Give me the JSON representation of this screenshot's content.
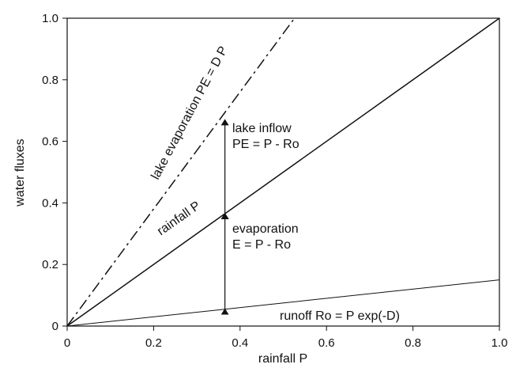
{
  "chart_data": {
    "type": "line",
    "title": "",
    "xlabel": "rainfall P",
    "ylabel": "water fluxes",
    "xlim": [
      0,
      1
    ],
    "ylim": [
      0,
      1
    ],
    "xticks": [
      "0",
      "0.2",
      "0.4",
      "0.6",
      "0.8",
      "1.0"
    ],
    "yticks": [
      "0",
      "0.2",
      "0.4",
      "0.6",
      "0.8",
      "1.0"
    ],
    "grid": false,
    "legend": "none",
    "series": [
      {
        "x": [
          0,
          0.526
        ],
        "y": [
          0,
          1.0
        ],
        "style": "dash-dot"
      },
      {
        "x": [
          0,
          1.0
        ],
        "y": [
          0,
          1.0
        ],
        "style": "solid"
      },
      {
        "x": [
          0,
          1.0
        ],
        "y": [
          0,
          0.15
        ],
        "style": "solid-thin"
      }
    ],
    "arrows": [
      {
        "x": 0.365,
        "y_from": 0.365,
        "y_to": 0.67
      },
      {
        "x": 0.365,
        "y_from": 0.055,
        "y_to": 0.365
      }
    ],
    "annotations": {
      "lake_evaporation": "lake evaporation  PE = D P",
      "lake_inflow_1": "lake inflow",
      "lake_inflow_2": "PE = P - Ro",
      "rainfall": "rainfall P",
      "evaporation_1": "evaporation",
      "evaporation_2": "E = P - Ro",
      "runoff": "runoff Ro = P exp(-D)"
    }
  }
}
